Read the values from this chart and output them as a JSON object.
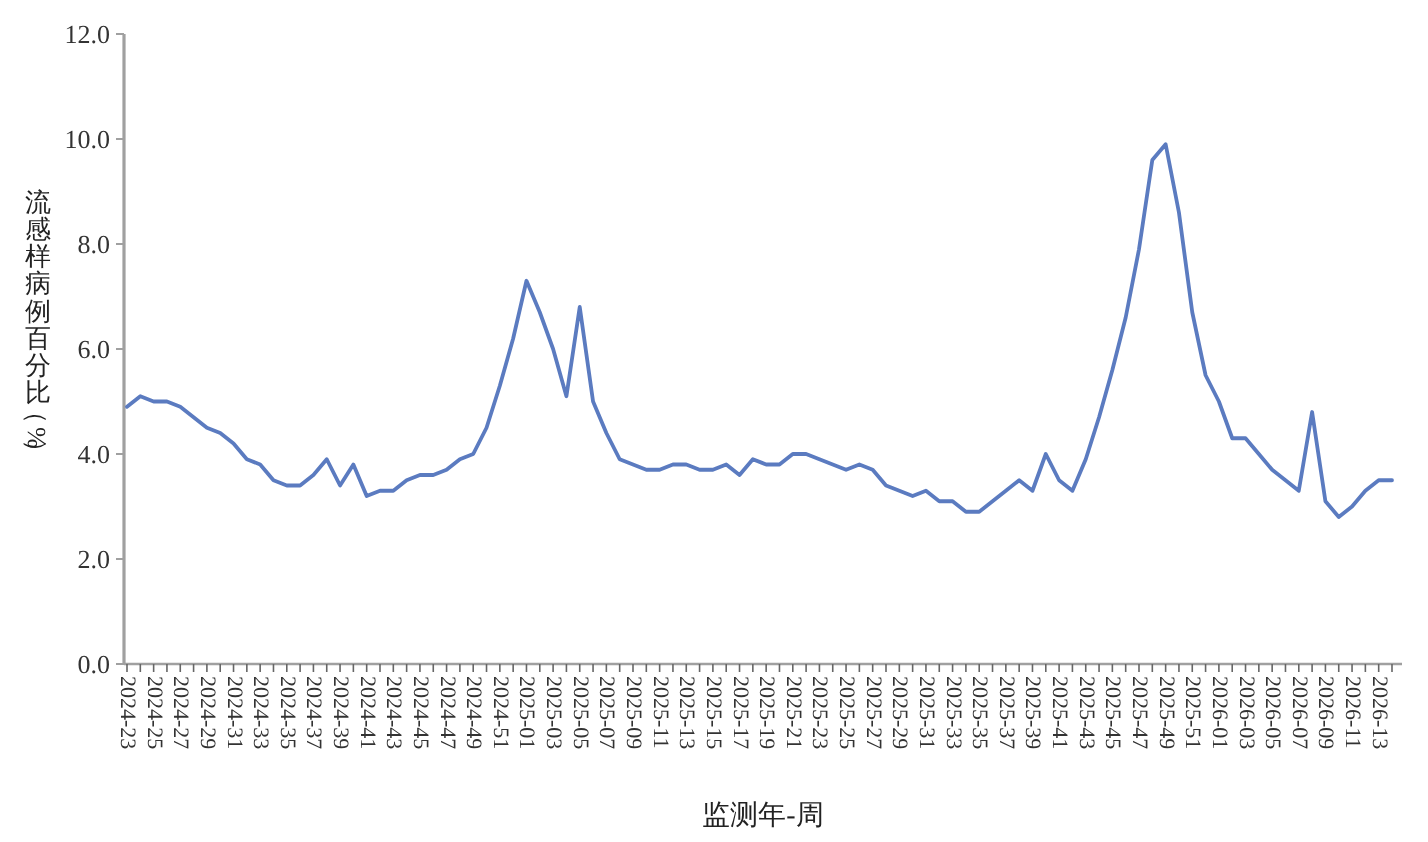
{
  "chart_data": {
    "type": "line",
    "ylabel": "流感样病例百分比（%）",
    "xlabel": "监测年-周",
    "categories": [
      "2024-23",
      null,
      "2024-25",
      null,
      "2024-27",
      null,
      "2024-29",
      null,
      "2024-31",
      null,
      "2024-33",
      null,
      "2024-35",
      null,
      "2024-37",
      null,
      "2024-39",
      null,
      "2024-41",
      null,
      "2024-43",
      null,
      "2024-45",
      null,
      "2024-47",
      null,
      "2024-49",
      null,
      "2024-51",
      null,
      "2025-01",
      null,
      "2025-03",
      null,
      "2025-05",
      null,
      "2025-07",
      null,
      "2025-09",
      null,
      "2025-11",
      null,
      "2025-13",
      null,
      "2025-15",
      null,
      "2025-17",
      null,
      "2025-19",
      null,
      "2025-21",
      null,
      "2025-23",
      null,
      "2025-25",
      null,
      "2025-27",
      null,
      "2025-29",
      null,
      "2025-31",
      null,
      "2025-33",
      null,
      "2025-35",
      null,
      "2025-37",
      null,
      "2025-39",
      null,
      "2025-41",
      null,
      "2025-43",
      null,
      "2025-45",
      null,
      "2025-47",
      null,
      "2025-49",
      null,
      "2025-51",
      null,
      "2026-01",
      null,
      "2026-03",
      null,
      "2026-05",
      null,
      "2026-07",
      null,
      "2026-09",
      null,
      "2026-11",
      null,
      "2026-13",
      null
    ],
    "values": [
      4.9,
      5.1,
      5.0,
      5.0,
      4.9,
      4.7,
      4.5,
      4.4,
      4.2,
      3.9,
      3.8,
      3.5,
      3.4,
      3.4,
      3.6,
      3.9,
      3.4,
      3.8,
      3.2,
      3.3,
      3.3,
      3.5,
      3.6,
      3.6,
      3.7,
      3.9,
      4.0,
      4.5,
      5.3,
      6.2,
      7.3,
      6.7,
      6.0,
      5.1,
      6.8,
      5.0,
      4.4,
      3.9,
      3.8,
      3.7,
      3.7,
      3.8,
      3.8,
      3.7,
      3.7,
      3.8,
      3.6,
      3.9,
      3.8,
      3.8,
      4.0,
      4.0,
      3.9,
      3.8,
      3.7,
      3.8,
      3.7,
      3.4,
      3.3,
      3.2,
      3.3,
      3.1,
      3.1,
      2.9,
      2.9,
      3.1,
      3.3,
      3.5,
      3.3,
      4.0,
      3.5,
      3.3,
      3.9,
      4.7,
      5.6,
      6.6,
      7.9,
      9.6,
      9.9,
      8.6,
      6.7,
      5.5,
      5.0,
      4.3,
      4.3,
      4.0,
      3.7,
      3.5,
      3.3,
      4.8,
      3.1,
      2.8,
      3.0,
      3.3,
      3.5,
      3.5
    ],
    "color": "#5b7bc0",
    "marker": "none",
    "line_style": "solid",
    "ylim": [
      0,
      12
    ],
    "yticks": [
      {
        "value": 0,
        "label": "0.0"
      },
      {
        "value": 2,
        "label": "2.0"
      },
      {
        "value": 4,
        "label": "4.0"
      },
      {
        "value": 6,
        "label": "6.0"
      },
      {
        "value": 8,
        "label": "8.0"
      },
      {
        "value": 10,
        "label": "10.0"
      },
      {
        "value": 12,
        "label": "12.0"
      }
    ]
  }
}
